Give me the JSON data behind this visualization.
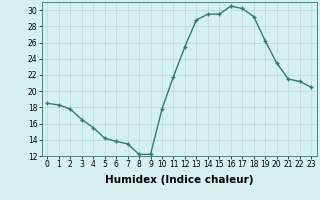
{
  "x": [
    0,
    1,
    2,
    3,
    4,
    5,
    6,
    7,
    8,
    9,
    10,
    11,
    12,
    13,
    14,
    15,
    16,
    17,
    18,
    19,
    20,
    21,
    22,
    23
  ],
  "y": [
    18.5,
    18.3,
    17.8,
    16.5,
    15.5,
    14.2,
    13.8,
    13.5,
    12.2,
    12.2,
    17.8,
    21.8,
    25.5,
    28.8,
    29.5,
    29.5,
    30.5,
    30.2,
    29.2,
    26.2,
    23.5,
    21.5,
    21.2,
    20.5
  ],
  "line_color": "#2e7d6e",
  "bg_color": "#d6f0f0",
  "grid_color": "#b8d8d8",
  "xlabel": "Humidex (Indice chaleur)",
  "ylim": [
    12,
    31
  ],
  "xlim": [
    -0.5,
    23.5
  ],
  "yticks": [
    12,
    14,
    16,
    18,
    20,
    22,
    24,
    26,
    28,
    30
  ],
  "xticks": [
    0,
    1,
    2,
    3,
    4,
    5,
    6,
    7,
    8,
    9,
    10,
    11,
    12,
    13,
    14,
    15,
    16,
    17,
    18,
    19,
    20,
    21,
    22,
    23
  ],
  "tick_fontsize": 5.5,
  "xlabel_fontsize": 7.5,
  "marker": "+",
  "marker_size": 3.5,
  "line_width": 1.0
}
